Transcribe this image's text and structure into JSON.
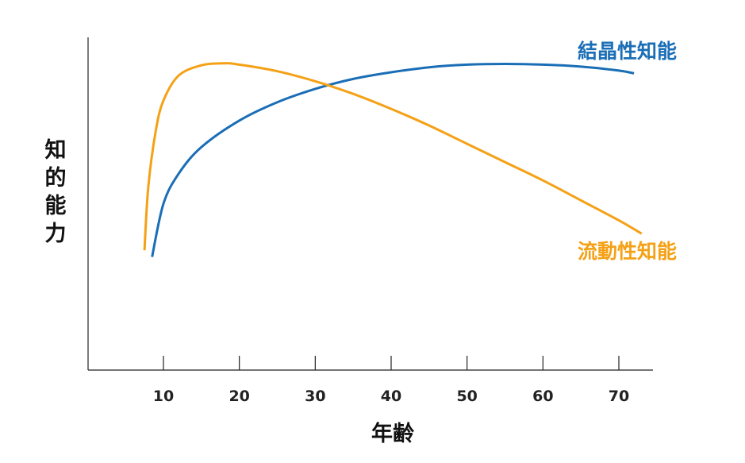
{
  "chart_data": {
    "type": "line",
    "xlabel": "年齢",
    "ylabel": "知的能力",
    "xlim": [
      0,
      75
    ],
    "ylim": [
      0,
      100
    ],
    "x_ticks": [
      10,
      20,
      30,
      40,
      50,
      60,
      70
    ],
    "grid": false,
    "legend": "inline labels at right end of each curve",
    "series": [
      {
        "name": "結晶性知能",
        "color": "#1a6eb6",
        "x": [
          8.5,
          10,
          12,
          15,
          20,
          25,
          30,
          35,
          40,
          45,
          50,
          55,
          60,
          65,
          70,
          72
        ],
        "y": [
          34,
          50,
          59,
          67,
          75,
          80.5,
          84.5,
          87.5,
          89.5,
          91,
          91.8,
          92,
          91.8,
          91.2,
          90,
          89.2
        ]
      },
      {
        "name": "流動性知能",
        "color": "#f4a116",
        "x": [
          7.5,
          8,
          9,
          10,
          12,
          15,
          18,
          20,
          25,
          30,
          35,
          40,
          45,
          50,
          55,
          60,
          65,
          70,
          73
        ],
        "y": [
          36,
          55,
          72,
          81,
          88.5,
          91.6,
          92.2,
          91.8,
          89.8,
          86.8,
          83,
          78.5,
          73.5,
          68,
          62.5,
          57,
          51,
          45,
          41
        ]
      }
    ]
  }
}
